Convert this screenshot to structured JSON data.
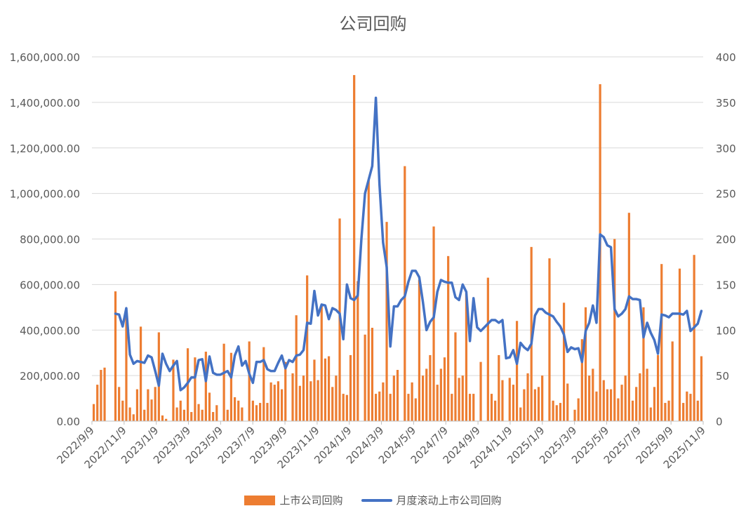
{
  "chart_data": {
    "type": "bar+line",
    "title": "公司回购",
    "x_tick_labels": [
      "2022/9/9",
      "2022/11/9",
      "2023/1/9",
      "2023/3/9",
      "2023/5/9",
      "2023/7/9",
      "2023/9/9",
      "2023/11/9",
      "2024/1/9",
      "2024/3/9",
      "2024/5/9",
      "2024/7/9",
      "2024/9/9",
      "2024/11/9",
      "2025/1/9",
      "2025/3/9",
      "2025/5/9",
      "2025/7/9",
      "2025/9/9",
      "2025/11/9"
    ],
    "y_left": {
      "ylim": [
        0,
        1600000
      ],
      "tick_labels": [
        "0.00",
        "200,000.00",
        "400,000.00",
        "600,000.00",
        "800,000.00",
        "1,000,000.00",
        "1,200,000.00",
        "1,400,000.00",
        "1,600,000.00"
      ]
    },
    "y_right": {
      "ylim": [
        0,
        400
      ],
      "tick_labels": [
        "0",
        "50",
        "100",
        "150",
        "200",
        "250",
        "300",
        "350",
        "400"
      ]
    },
    "grid": true,
    "legend_position": "bottom",
    "series": [
      {
        "name": "上市公司回购",
        "kind": "bar",
        "axis": "left",
        "color": "#ED7D31",
        "values": [
          75000,
          160000,
          225000,
          235000,
          0,
          0,
          570000,
          150000,
          90000,
          480000,
          60000,
          30000,
          140000,
          415000,
          50000,
          140000,
          95000,
          150000,
          390000,
          25000,
          10000,
          0,
          270000,
          60000,
          90000,
          50000,
          320000,
          40000,
          280000,
          75000,
          50000,
          305000,
          125000,
          40000,
          70000,
          0,
          340000,
          50000,
          300000,
          105000,
          90000,
          60000,
          0,
          350000,
          90000,
          70000,
          80000,
          325000,
          80000,
          170000,
          160000,
          175000,
          140000,
          260000,
          0,
          210000,
          465000,
          155000,
          200000,
          640000,
          175000,
          270000,
          180000,
          510000,
          275000,
          285000,
          150000,
          200000,
          890000,
          120000,
          115000,
          290000,
          1520000,
          615000,
          0,
          380000,
          1060000,
          410000,
          120000,
          130000,
          170000,
          875000,
          120000,
          200000,
          225000,
          0,
          1120000,
          120000,
          170000,
          100000,
          620000,
          200000,
          230000,
          290000,
          855000,
          160000,
          230000,
          280000,
          725000,
          120000,
          390000,
          190000,
          200000,
          560000,
          120000,
          120000,
          0,
          260000,
          0,
          630000,
          120000,
          90000,
          290000,
          180000,
          0,
          190000,
          160000,
          440000,
          60000,
          140000,
          210000,
          765000,
          140000,
          150000,
          200000,
          0,
          715000,
          90000,
          70000,
          80000,
          520000,
          165000,
          0,
          50000,
          100000,
          360000,
          500000,
          200000,
          230000,
          130000,
          1480000,
          180000,
          140000,
          140000,
          800000,
          100000,
          160000,
          200000,
          915000,
          90000,
          150000,
          210000,
          500000,
          230000,
          60000,
          150000,
          290000,
          690000,
          80000,
          90000,
          350000,
          0,
          670000,
          80000,
          130000,
          120000,
          730000,
          90000,
          285000
        ]
      },
      {
        "name": "月度滚动上市公司回购",
        "kind": "line",
        "axis": "right",
        "color": "#4472C4",
        "values": [
          null,
          null,
          null,
          null,
          null,
          null,
          118,
          117,
          104,
          124,
          73,
          63,
          66,
          65,
          64,
          72,
          70,
          55,
          39,
          74,
          63,
          55,
          61,
          66,
          34,
          37,
          42,
          48,
          48,
          67,
          68,
          44,
          71,
          53,
          51,
          51,
          53,
          55,
          48,
          72,
          82,
          61,
          66,
          52,
          42,
          65,
          65,
          67,
          57,
          55,
          55,
          64,
          72,
          58,
          67,
          65,
          72,
          73,
          78,
          108,
          107,
          143,
          116,
          128,
          127,
          112,
          124,
          122,
          118,
          90,
          150,
          135,
          133,
          138,
          200,
          250,
          265,
          280,
          355,
          260,
          196,
          169,
          82,
          126,
          126,
          133,
          137,
          153,
          165,
          165,
          158,
          131,
          100,
          109,
          114,
          142,
          155,
          153,
          152,
          152,
          136,
          133,
          150,
          142,
          88,
          135,
          103,
          99,
          103,
          107,
          111,
          111,
          108,
          111,
          69,
          70,
          78,
          63,
          86,
          81,
          78,
          85,
          116,
          123,
          123,
          119,
          117,
          115,
          109,
          104,
          95,
          76,
          81,
          79,
          80,
          65,
          99,
          108,
          127,
          108,
          205,
          202,
          193,
          191,
          123,
          115,
          118,
          123,
          137,
          134,
          134,
          133,
          92,
          108,
          97,
          89,
          74,
          117,
          116,
          114,
          118,
          118,
          118,
          117,
          121,
          99,
          103,
          107,
          121
        ]
      }
    ]
  }
}
